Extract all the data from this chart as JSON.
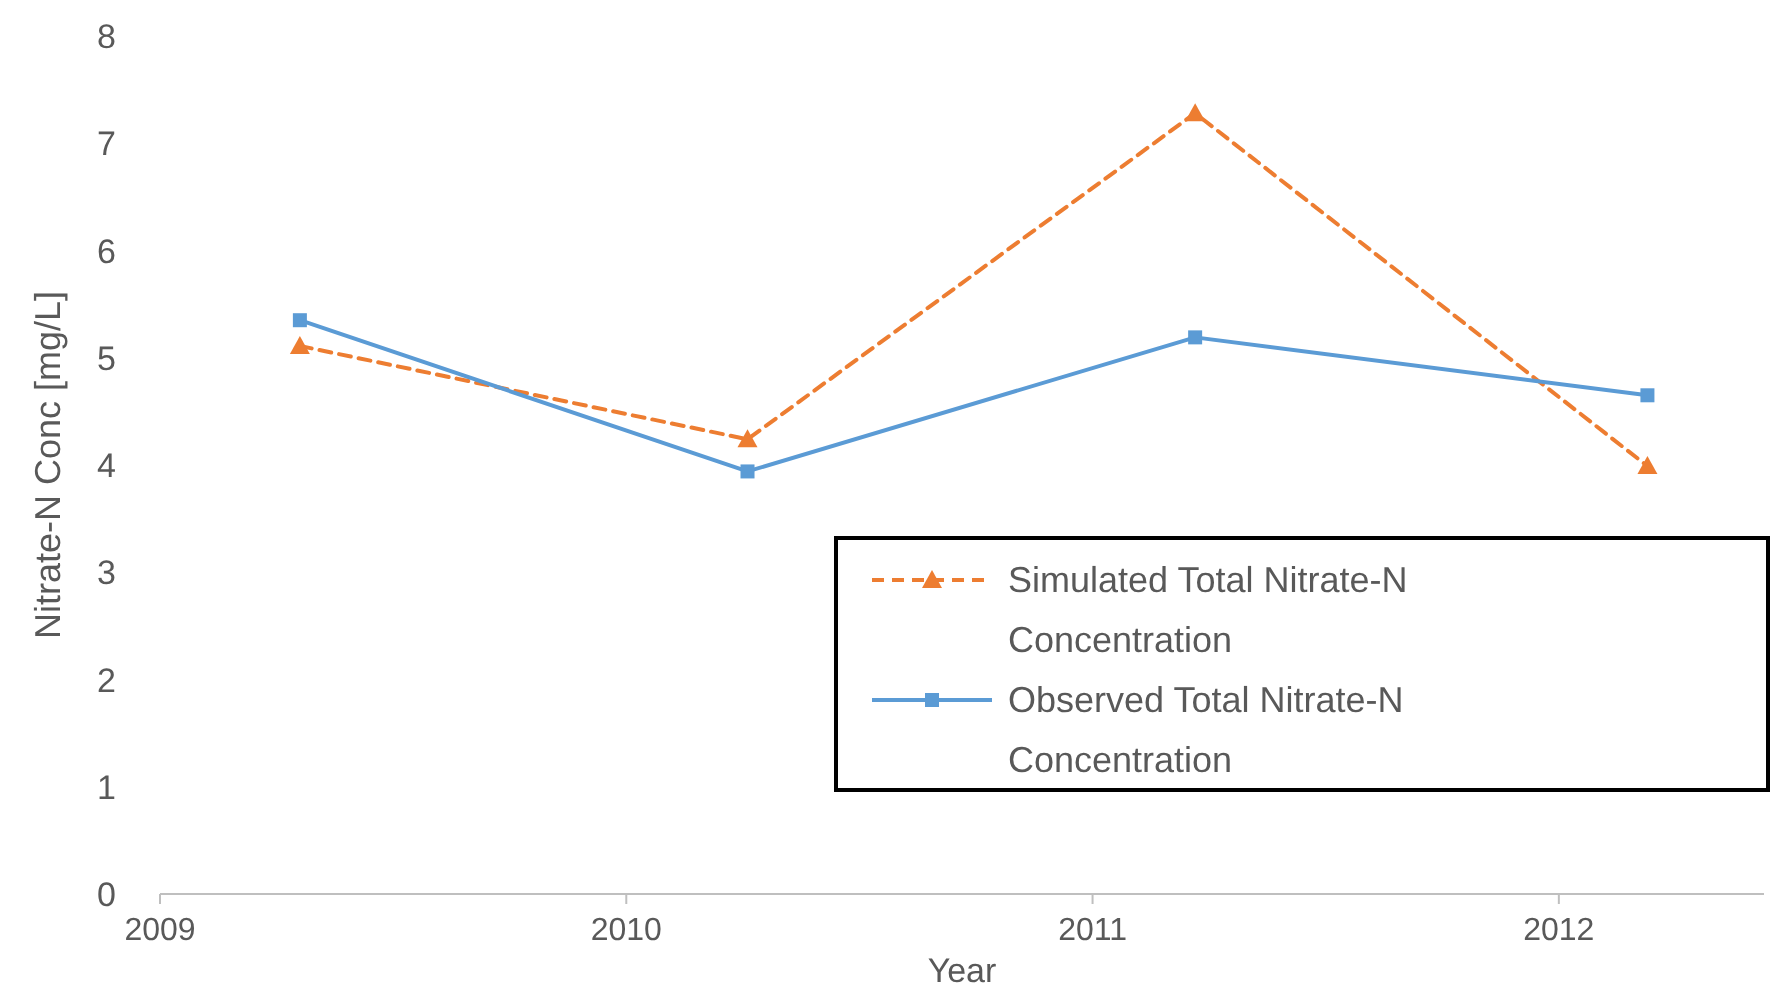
{
  "chart_data": {
    "type": "line",
    "xlabel": "Year",
    "ylabel": "Nitrate-N Conc [mg/L]",
    "xlim": [
      2009,
      2012.44
    ],
    "xticks": [
      2009,
      2010,
      2011,
      2012
    ],
    "ylim": [
      0,
      8
    ],
    "yticks": [
      0,
      1,
      2,
      3,
      4,
      5,
      6,
      7,
      8
    ],
    "series": [
      {
        "name": "Simulated Total Nitrate-N Concentration",
        "color": "#ed7d31",
        "x": [
          2009.3,
          2010.26,
          2011.22,
          2012.19
        ],
        "values": [
          5.11,
          4.24,
          7.28,
          3.99
        ],
        "marker": "triangle",
        "line_style": "dashed"
      },
      {
        "name": "Observed Total Nitrate-N Concentration",
        "color": "#5b9bd5",
        "x": [
          2009.3,
          2010.26,
          2011.22,
          2012.19
        ],
        "values": [
          5.35,
          3.94,
          5.19,
          4.65
        ],
        "marker": "square",
        "line_style": "solid"
      }
    ],
    "legend": "bottom right",
    "grid": false
  }
}
